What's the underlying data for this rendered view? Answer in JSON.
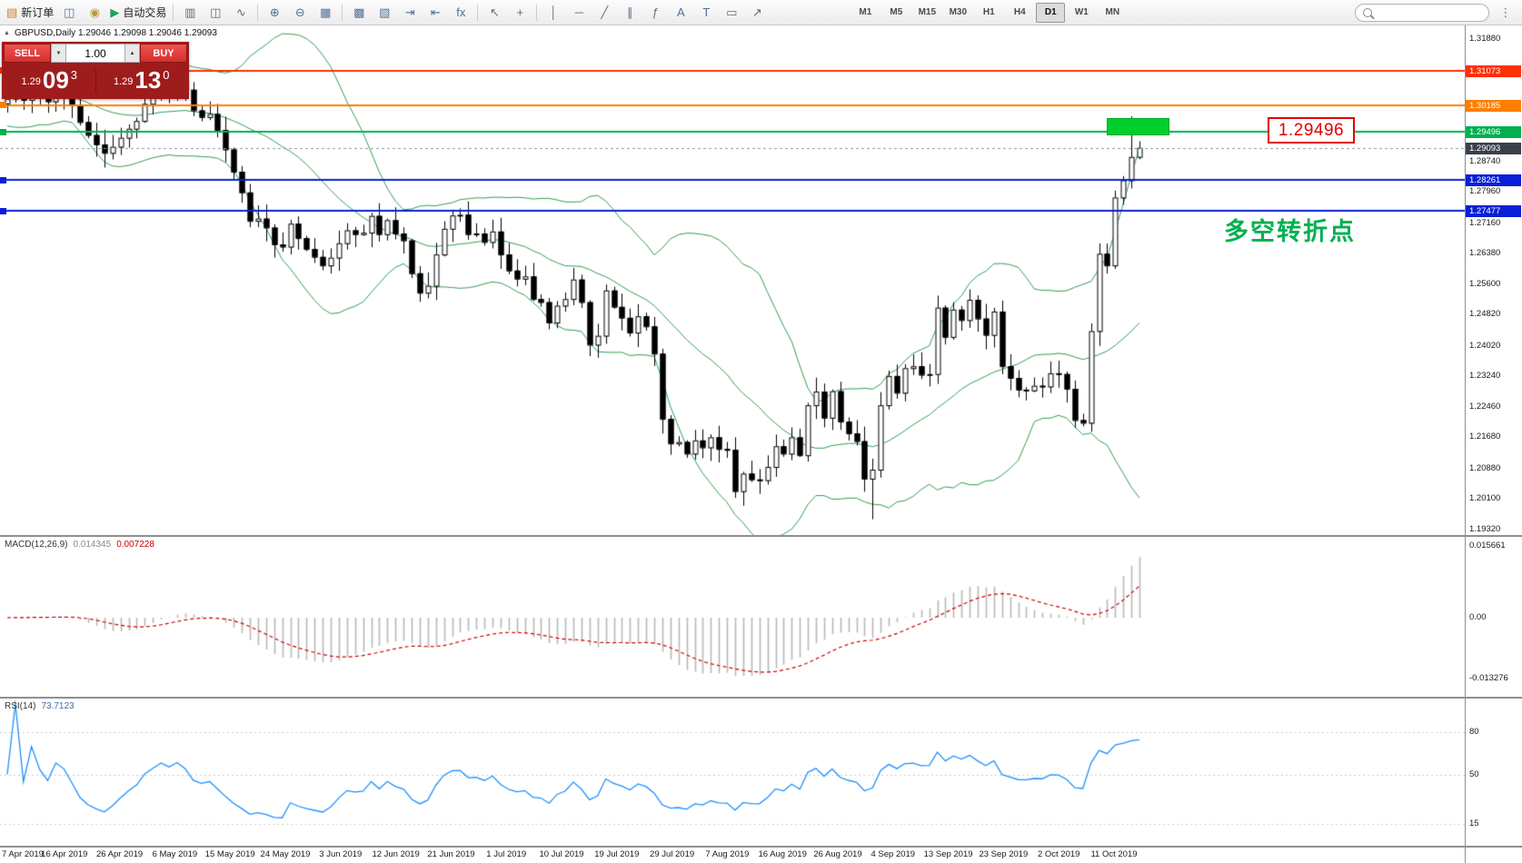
{
  "toolbar": {
    "groups": [
      [
        {
          "name": "new-order",
          "glyph": "▤",
          "color": "#c8802d",
          "label": "新订单"
        },
        {
          "name": "account",
          "glyph": "◫",
          "color": "#4a78b0"
        },
        {
          "name": "notifications",
          "glyph": "◉",
          "color": "#b59a3a"
        },
        {
          "name": "autotrading",
          "glyph": "▶",
          "color": "#1fa257",
          "label": "自动交易"
        }
      ],
      [
        {
          "name": "bar-chart",
          "glyph": "▥"
        },
        {
          "name": "candlestick-chart",
          "glyph": "◫"
        },
        {
          "name": "line-chart",
          "glyph": "∿"
        }
      ],
      [
        {
          "name": "zoom-in",
          "glyph": "⊕"
        },
        {
          "name": "zoom-out",
          "glyph": "⊖"
        },
        {
          "name": "tile-windows",
          "glyph": "▦"
        }
      ],
      [
        {
          "name": "new-chart",
          "glyph": "▩"
        },
        {
          "name": "profiles",
          "glyph": "▧"
        },
        {
          "name": "auto-scroll",
          "glyph": "⇥"
        },
        {
          "name": "chart-shift",
          "glyph": "⇤"
        },
        {
          "name": "indicator-list",
          "glyph": "fx"
        }
      ],
      [
        {
          "name": "cursor",
          "glyph": "↖"
        },
        {
          "name": "crosshair",
          "glyph": "+"
        }
      ],
      [
        {
          "name": "vertical-line",
          "glyph": "│"
        },
        {
          "name": "horizontal-line",
          "glyph": "─"
        },
        {
          "name": "trendline",
          "glyph": "╱"
        },
        {
          "name": "equidistant-channel",
          "glyph": "∥"
        },
        {
          "name": "fibonacci",
          "glyph": "ƒ"
        },
        {
          "name": "text",
          "glyph": "A"
        },
        {
          "name": "text-label",
          "glyph": "T"
        },
        {
          "name": "shapes",
          "glyph": "▭"
        },
        {
          "name": "arrows",
          "glyph": "↗"
        }
      ]
    ],
    "timeframes": [
      "M1",
      "M5",
      "M15",
      "M30",
      "H1",
      "H4",
      "D1",
      "W1",
      "MN"
    ],
    "active_timeframe": "D1",
    "search_value": "",
    "overflow_glyph": "⋮"
  },
  "trade_panel": {
    "sell_label": "SELL",
    "buy_label": "BUY",
    "lot_size": "1.00",
    "spinner_down": "▼",
    "spinner_up": "▲",
    "bid": {
      "main": "1.29",
      "pips": "09",
      "point": "3"
    },
    "ask": {
      "main": "1.29",
      "pips": "13",
      "point": "0"
    }
  },
  "chart_data": {
    "type": "candlestick",
    "symbol": "GBPUSD",
    "timeframe": "Daily",
    "symbol_info": "GBPUSD,Daily 1.29046 1.29098 1.29046 1.29093",
    "collapse_glyph": "▲",
    "ohlc_display": {
      "open": "1.29046",
      "high": "1.29098",
      "low": "1.29046",
      "close": "1.29093"
    },
    "x_tick_labels": [
      "7 Apr 2019",
      "16 Apr 2019",
      "26 Apr 2019",
      "6 May 2019",
      "15 May 2019",
      "24 May 2019",
      "3 Jun 2019",
      "12 Jun 2019",
      "21 Jun 2019",
      "1 Jul 2019",
      "10 Jul 2019",
      "19 Jul 2019",
      "29 Jul 2019",
      "7 Aug 2019",
      "16 Aug 2019",
      "26 Aug 2019",
      "4 Sep 2019",
      "13 Sep 2019",
      "23 Sep 2019",
      "2 Oct 2019",
      "11 Oct 2019"
    ],
    "y_axis": {
      "min": 1.192,
      "max": 1.3218,
      "ticks": [
        "1.31880",
        "1.28740",
        "1.27960",
        "1.27160",
        "1.26380",
        "1.25600",
        "1.24820",
        "1.24020",
        "1.23240",
        "1.22460",
        "1.21680",
        "1.20880",
        "1.20100",
        "1.19320"
      ]
    },
    "current_price": {
      "text": "1.29093",
      "value": 1.29093,
      "bg": "#3a4049"
    },
    "levels": [
      {
        "name": "resistance-upper",
        "label": "1.31073",
        "price": 1.31073,
        "color": "#ff2f00",
        "tag_bg": "#ff2f00",
        "width": 2
      },
      {
        "name": "resistance-lower",
        "label": "1.30185",
        "price": 1.30185,
        "color": "#ff7e00",
        "tag_bg": "#ff7e00",
        "width": 2
      },
      {
        "name": "pivot-green",
        "label": "1.29496",
        "price": 1.29496,
        "color": "#00b050",
        "tag_bg": "#00b050",
        "width": 2
      },
      {
        "name": "support-upper",
        "label": "1.28261",
        "price": 1.28261,
        "color": "#0a1fd6",
        "tag_bg": "#0a1fd6",
        "width": 2
      },
      {
        "name": "support-lower",
        "label": "1.27477",
        "price": 1.27477,
        "color": "#0a1fd6",
        "tag_bg": "#0a1fd6",
        "width": 2
      }
    ],
    "annotations": {
      "price_callout": "1.29496",
      "note": "多空转折点",
      "rectangle": {
        "x_start_index": 136,
        "x_end_index": 143.7,
        "price_top": 1.2985,
        "price_bottom": 1.2942,
        "color": "#00cf2e"
      }
    },
    "indicators": {
      "bollinger": {
        "period": 20,
        "deviation": 2,
        "color": "#2f9e52"
      },
      "macd": {
        "label": "MACD(12,26,9)",
        "value_main": "0.014345",
        "value_signal": "0.007228",
        "axis_ticks": [
          {
            "text": "0.015661",
            "value": 0.015661
          },
          {
            "text": "0.00",
            "value": 0
          },
          {
            "text": "-0.013276",
            "value": -0.013276
          }
        ],
        "histogram_color": "#b8b8b8",
        "signal_color": "#cc0000"
      },
      "rsi": {
        "label": "RSI(14)",
        "value_text": "73.7123",
        "axis_ticks": [
          {
            "text": "80",
            "value": 80
          },
          {
            "text": "50",
            "value": 50
          },
          {
            "text": "15",
            "value": 15
          }
        ],
        "color": "#1e90ff"
      }
    },
    "style": {
      "bull": "#ffffff",
      "bear": "#000000",
      "wick": "#000000",
      "bollinger": "#2f9e52",
      "macd_hist": "#b8b8b8",
      "macd_signal": "#cc0000",
      "rsi": "#1e90ff",
      "bid_line": "#8a97a8"
    },
    "closes": [
      1.3035,
      1.3048,
      1.3032,
      1.3056,
      1.304,
      1.3028,
      1.3052,
      1.3044,
      1.3018,
      1.2975,
      1.2942,
      1.2918,
      1.2896,
      1.2912,
      1.2935,
      1.2958,
      1.2978,
      1.3022,
      1.3048,
      1.3075,
      1.306,
      1.3082,
      1.3058,
      1.3005,
      1.2988,
      1.2996,
      1.2955,
      1.2905,
      1.2848,
      1.2795,
      1.2722,
      1.2728,
      1.2705,
      1.2662,
      1.2656,
      1.2715,
      1.2678,
      1.265,
      1.263,
      1.2608,
      1.2628,
      1.2665,
      1.2698,
      1.2688,
      1.2692,
      1.2735,
      1.2688,
      1.2724,
      1.269,
      1.2672,
      1.2588,
      1.2538,
      1.2556,
      1.2636,
      1.2702,
      1.2736,
      1.2738,
      1.2688,
      1.269,
      1.2668,
      1.2695,
      1.2636,
      1.2595,
      1.2574,
      1.258,
      1.2522,
      1.2514,
      1.2462,
      1.2505,
      1.2522,
      1.2572,
      1.2514,
      1.2405,
      1.2428,
      1.2544,
      1.2502,
      1.2474,
      1.2436,
      1.2478,
      1.2452,
      1.2382,
      1.2215,
      1.2152,
      1.2156,
      1.2126,
      1.216,
      1.2142,
      1.2168,
      1.2138,
      1.2136,
      1.203,
      1.2075,
      1.206,
      1.2058,
      1.2092,
      1.2145,
      1.2126,
      1.2168,
      1.2122,
      1.225,
      1.2285,
      1.2218,
      1.2286,
      1.2208,
      1.2178,
      1.2158,
      1.2062,
      1.2085,
      1.225,
      1.2325,
      1.2282,
      1.2345,
      1.235,
      1.2328,
      1.233,
      1.25,
      1.2425,
      1.2495,
      1.2468,
      1.252,
      1.2472,
      1.243,
      1.249,
      1.235,
      1.232,
      1.229,
      1.2288,
      1.23,
      1.2298,
      1.2332,
      1.233,
      1.2292,
      1.2212,
      1.2205,
      1.244,
      1.2638,
      1.2608,
      1.2782,
      1.2826,
      1.2886,
      1.29093
    ],
    "wick_overrides": {
      "107": {
        "low": 1.1958
      },
      "134": {
        "low": 1.2182
      },
      "139": {
        "high": 1.299
      },
      "140": {
        "high": 1.2926
      }
    }
  }
}
